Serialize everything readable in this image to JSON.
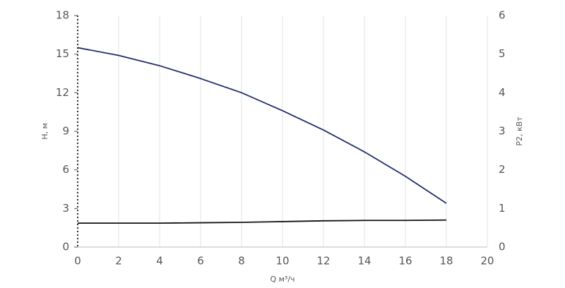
{
  "chart_data": {
    "type": "line",
    "x_label": "Q м³/ч",
    "y_label": "H, м",
    "y2_label": "P2, кВт",
    "x": [
      0,
      2,
      4,
      6,
      8,
      10,
      12,
      14,
      16,
      18
    ],
    "series": [
      {
        "name": "H, м",
        "color": "#1f2d6b",
        "values": [
          15.5,
          14.9,
          14.1,
          13.1,
          12.0,
          10.6,
          9.1,
          7.4,
          5.5,
          3.4
        ]
      },
      {
        "name": "P2, кВт",
        "color": "#111111",
        "axis": "y2",
        "values": [
          0.62,
          0.62,
          0.62,
          0.63,
          0.64,
          0.66,
          0.68,
          0.69,
          0.69,
          0.7
        ]
      }
    ],
    "xlim": [
      0,
      20
    ],
    "xticks": [
      0,
      2,
      4,
      6,
      8,
      10,
      12,
      14,
      16,
      18,
      20
    ],
    "ylim": [
      0,
      18
    ],
    "yticks": [
      0,
      3,
      6,
      9,
      12,
      15,
      18
    ],
    "y2lim": [
      0,
      6
    ],
    "y2ticks": [
      0,
      1,
      2,
      3,
      4,
      5,
      6
    ],
    "grid": "x"
  }
}
